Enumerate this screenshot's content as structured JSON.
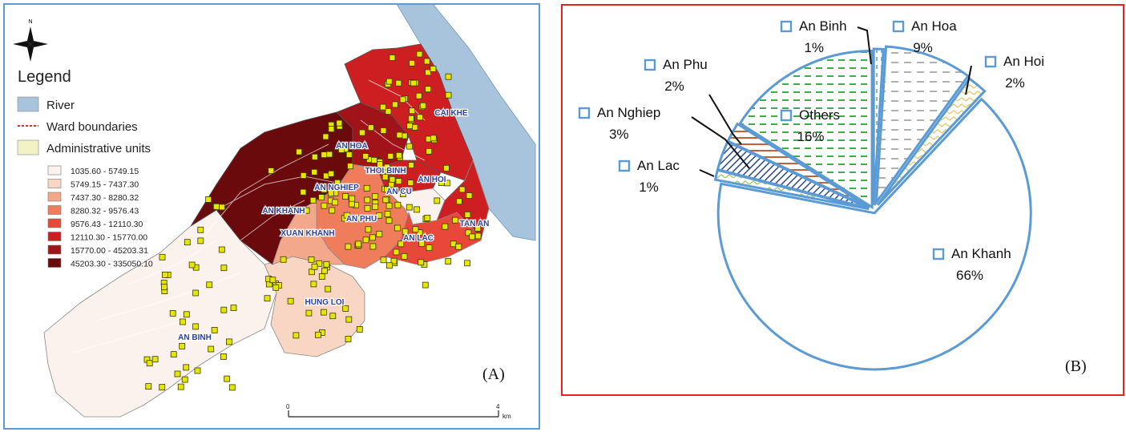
{
  "panel_a": {
    "label": "(A)",
    "compass_letter": "N",
    "legend_title": "Legend",
    "legend_items": [
      {
        "label": "River",
        "color": "#a8c4dc"
      },
      {
        "label": "Ward boundaries",
        "color": "#c0392b"
      },
      {
        "label": "Administrative units",
        "color": "#f2f2c4"
      }
    ],
    "class_ranges": [
      {
        "label": "1035.60 - 5749.15",
        "color": "#fbf2ed"
      },
      {
        "label": "5749.15 - 7437.30",
        "color": "#f9d6c4"
      },
      {
        "label": "7437.30 - 8280.32",
        "color": "#f4a88b"
      },
      {
        "label": "8280.32 - 9576.43",
        "color": "#ef7d5c"
      },
      {
        "label": "9576.43 - 12110.30",
        "color": "#e8473a"
      },
      {
        "label": "12110.30 - 15770.00",
        "color": "#cd1f22"
      },
      {
        "label": "15770.00 - 45203.31",
        "color": "#a01419"
      },
      {
        "label": "45203.30 - 335050.10",
        "color": "#6a0a0c"
      }
    ],
    "wards": [
      "CAI KHE",
      "AN HOA",
      "THOI BINH",
      "AN HOI",
      "AN NGHIEP",
      "AN CU",
      "AN KHANH",
      "TAN AN",
      "AN PHU",
      "XUAN KHANH",
      "AN LAC",
      "HUNG LOI",
      "AN BINH"
    ],
    "scale": {
      "start": "0",
      "end": "4",
      "unit": "km"
    }
  },
  "panel_b": {
    "label": "(B)",
    "chart_data": {
      "type": "pie",
      "slices": [
        {
          "name": "An Binh",
          "value": 1,
          "label": "1%",
          "pattern": "dashes",
          "color": "#ffffff"
        },
        {
          "name": "An Hoa",
          "value": 9,
          "label": "9%",
          "pattern": "grey-dash",
          "color": "#b0b0b0"
        },
        {
          "name": "An Hoi",
          "value": 2,
          "label": "2%",
          "pattern": "zigzag",
          "color": "#e7c86e"
        },
        {
          "name": "An Khanh",
          "value": 66,
          "label": "66%",
          "pattern": "solid",
          "color": "#ffffff"
        },
        {
          "name": "An Lac",
          "value": 1,
          "label": "1%",
          "pattern": "zigzag",
          "color": "#a7c66a"
        },
        {
          "name": "An Nghiep",
          "value": 3,
          "label": "3%",
          "pattern": "diagonal",
          "color": "#2e4a8a"
        },
        {
          "name": "An Phu",
          "value": 2,
          "label": "2%",
          "pattern": "horizontal",
          "color": "#c2623a"
        },
        {
          "name": "Others",
          "value": 16,
          "label": "16%",
          "pattern": "green-dash",
          "color": "#3fae4a"
        }
      ],
      "outline_color": "#5b9bd5"
    }
  }
}
